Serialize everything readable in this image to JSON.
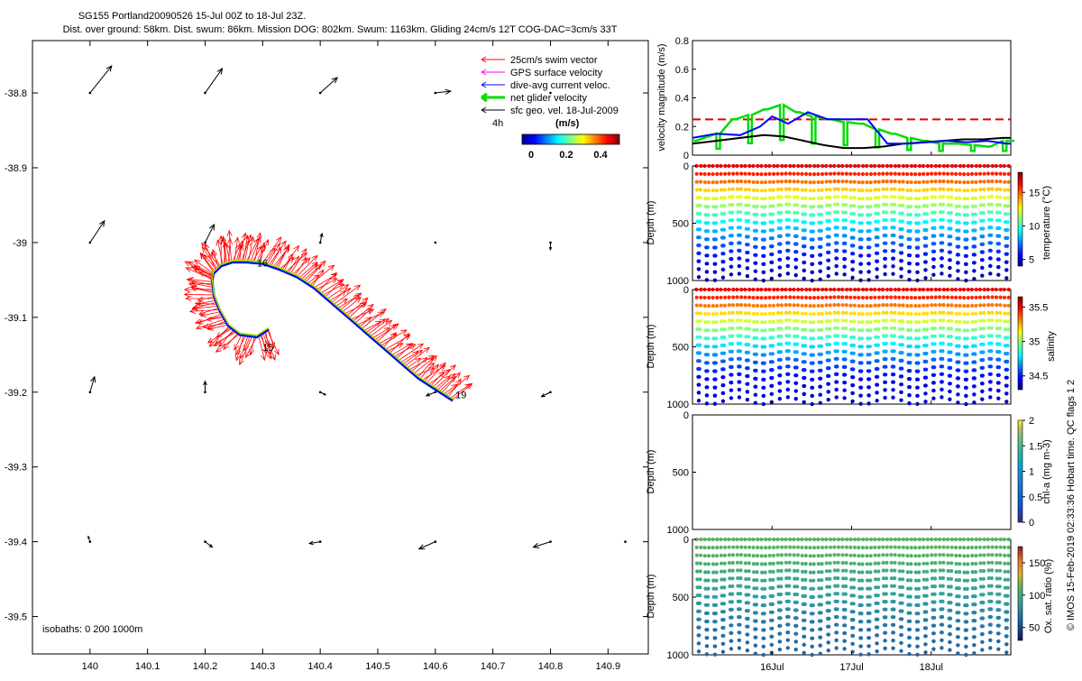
{
  "header": {
    "title": "SG155 Portland20090526 15-Jul 00Z to 18-Jul 23Z.",
    "subtitle": "Dist. over ground: 58km. Dist. swum: 86km. Mission DOG: 802km. Swum: 1163km. Gliding 24cm/s 12T COG-DAC=3cm/s 33T"
  },
  "side_credit": "© IMOS 15-Feb-2019 02:33:36 Hobart time. QC flags 1  2",
  "colors": {
    "swim": "#ff0000",
    "gps": "#ff00ff",
    "dac": "#0000ff",
    "net": "#00dd00",
    "geo": "#000000",
    "limit": "#e00000"
  },
  "chart_data": [
    {
      "id": "map",
      "type": "scatter",
      "xlim": [
        139.9,
        140.97
      ],
      "ylim": [
        -39.55,
        -38.73
      ],
      "xticks": [
        140,
        140.1,
        140.2,
        140.3,
        140.4,
        140.5,
        140.6,
        140.7,
        140.8,
        140.9
      ],
      "xtick_labels": [
        "140",
        "140.1",
        "140.2",
        "140.3",
        "140.4",
        "140.5",
        "140.6",
        "140.7",
        "140.8",
        "140.9"
      ],
      "yticks": [
        -38.8,
        -38.9,
        -39,
        -39.1,
        -39.2,
        -39.3,
        -39.4,
        -39.5
      ],
      "ytick_labels": [
        "-38.8",
        "-38.9",
        "-39",
        "-39.1",
        "-39.2",
        "-39.3",
        "-39.4",
        "-39.5"
      ],
      "legend_position": "top-right",
      "legend": [
        {
          "label": "25cm/s swim vector",
          "color": "#ff0000"
        },
        {
          "label": "GPS surface velocity",
          "color": "#ff00ff"
        },
        {
          "label": "dive-avg current veloc.",
          "color": "#0000ff"
        },
        {
          "label": "net glider velocity",
          "color": "#00dd00"
        },
        {
          "label": "sfc geo. vel. 18-Jul-2009",
          "color": "#000000"
        }
      ],
      "legend_time_label": "4h",
      "colorbar": {
        "label": "(m/s)",
        "range": [
          0,
          0.5
        ],
        "ticks": [
          0,
          0.2,
          0.4
        ],
        "tick_labels": [
          "0",
          "0.2",
          "0.4"
        ]
      },
      "isobaths_label": "isobaths: 0   200   1000m",
      "track": {
        "lon": [
          140.31,
          140.29,
          140.26,
          140.24,
          140.225,
          140.215,
          140.212,
          140.215,
          140.228,
          140.248,
          140.272,
          140.3,
          140.33,
          140.36,
          140.39,
          140.42,
          140.45,
          140.48,
          140.51,
          140.54,
          140.57,
          140.6,
          140.63
        ],
        "lat": [
          -39.115,
          -39.125,
          -39.122,
          -39.11,
          -39.09,
          -39.07,
          -39.05,
          -39.04,
          -39.03,
          -39.025,
          -39.025,
          -39.027,
          -39.035,
          -39.045,
          -39.06,
          -39.08,
          -39.1,
          -39.12,
          -39.14,
          -39.16,
          -39.18,
          -39.195,
          -39.21
        ]
      },
      "track_labels": [
        {
          "text": "16",
          "lon": 140.29,
          "lat": -39.032
        },
        {
          "text": "15",
          "lon": 140.3,
          "lat": -39.145
        },
        {
          "text": "19",
          "lon": 140.635,
          "lat": -39.208
        }
      ],
      "geo_vectors": [
        {
          "lon": 140.0,
          "lat": -38.8,
          "u": 0.24,
          "v": 0.3
        },
        {
          "lon": 140.2,
          "lat": -38.8,
          "u": 0.19,
          "v": 0.27
        },
        {
          "lon": 140.4,
          "lat": -38.8,
          "u": 0.19,
          "v": 0.17
        },
        {
          "lon": 140.6,
          "lat": -38.8,
          "u": 0.17,
          "v": 0.02
        },
        {
          "lon": 140.8,
          "lat": -38.8,
          "u": 0.0,
          "v": 0.0
        },
        {
          "lon": 140.0,
          "lat": -39.0,
          "u": 0.16,
          "v": 0.24
        },
        {
          "lon": 140.2,
          "lat": -39.0,
          "u": 0.1,
          "v": 0.2
        },
        {
          "lon": 140.4,
          "lat": -39.0,
          "u": 0.02,
          "v": 0.1
        },
        {
          "lon": 140.6,
          "lat": -39.0,
          "u": 0.01,
          "v": 0.0
        },
        {
          "lon": 140.8,
          "lat": -39.0,
          "u": 0.0,
          "v": -0.08
        },
        {
          "lon": 140.0,
          "lat": -39.2,
          "u": 0.05,
          "v": 0.17
        },
        {
          "lon": 140.2,
          "lat": -39.2,
          "u": 0.0,
          "v": 0.12
        },
        {
          "lon": 140.4,
          "lat": -39.2,
          "u": 0.06,
          "v": -0.03
        },
        {
          "lon": 140.6,
          "lat": -39.2,
          "u": -0.1,
          "v": -0.04
        },
        {
          "lon": 140.8,
          "lat": -39.2,
          "u": -0.1,
          "v": -0.05
        },
        {
          "lon": 140.0,
          "lat": -39.4,
          "u": -0.02,
          "v": 0.06
        },
        {
          "lon": 140.2,
          "lat": -39.4,
          "u": 0.08,
          "v": -0.06
        },
        {
          "lon": 140.4,
          "lat": -39.4,
          "u": -0.12,
          "v": -0.02
        },
        {
          "lon": 140.6,
          "lat": -39.4,
          "u": -0.18,
          "v": -0.08
        },
        {
          "lon": 140.8,
          "lat": -39.4,
          "u": -0.19,
          "v": -0.06
        },
        {
          "lon": 140.93,
          "lat": -39.4,
          "u": 0.0,
          "v": 0.0
        }
      ]
    },
    {
      "id": "velocity",
      "type": "line",
      "xlim": [
        15.0,
        19.0
      ],
      "ylim": [
        0,
        0.8
      ],
      "yticks": [
        0,
        0.2,
        0.4,
        0.6,
        0.8
      ],
      "ytick_labels": [
        "0",
        "0.2",
        "0.4",
        "0.6",
        "0.8"
      ],
      "ylabel": "velocity magnitude (m/s)",
      "reference_line": 0.25,
      "series": [
        {
          "id": "net",
          "color": "#00dd00",
          "x": [
            15.0,
            15.3,
            15.5,
            15.7,
            15.9,
            16.1,
            16.3,
            16.5,
            16.7,
            16.9,
            17.1,
            17.3,
            17.5,
            17.7,
            17.9,
            18.1,
            18.3,
            18.5,
            18.7,
            18.9,
            19.0
          ],
          "y": [
            0.1,
            0.15,
            0.25,
            0.28,
            0.32,
            0.35,
            0.3,
            0.27,
            0.25,
            0.23,
            0.22,
            0.18,
            0.15,
            0.12,
            0.1,
            0.08,
            0.08,
            0.07,
            0.06,
            0.1,
            0.1
          ]
        },
        {
          "id": "dac",
          "color": "#0000ff",
          "x": [
            15.0,
            15.3,
            15.6,
            15.85,
            16.0,
            16.2,
            16.45,
            16.7,
            16.95,
            17.2,
            17.45,
            17.7,
            17.95,
            18.2,
            18.45,
            18.7,
            18.95,
            19.0
          ],
          "y": [
            0.12,
            0.15,
            0.14,
            0.2,
            0.27,
            0.22,
            0.3,
            0.25,
            0.25,
            0.25,
            0.08,
            0.08,
            0.09,
            0.1,
            0.09,
            0.1,
            0.08,
            0.08
          ]
        },
        {
          "id": "geo",
          "color": "#000000",
          "x": [
            15.0,
            15.3,
            15.6,
            15.9,
            16.15,
            16.4,
            16.65,
            16.9,
            17.15,
            17.4,
            17.65,
            17.9,
            18.15,
            18.4,
            18.65,
            18.9,
            19.0
          ],
          "y": [
            0.08,
            0.1,
            0.12,
            0.14,
            0.13,
            0.1,
            0.07,
            0.05,
            0.05,
            0.06,
            0.08,
            0.09,
            0.1,
            0.11,
            0.11,
            0.12,
            0.12
          ]
        }
      ]
    },
    {
      "id": "temperature",
      "type": "scatter",
      "xlim": [
        15.0,
        19.0
      ],
      "ylim": [
        1000,
        0
      ],
      "yticks": [
        0,
        500,
        1000
      ],
      "ytick_labels": [
        "0",
        "500",
        "1000"
      ],
      "ylabel": "Depth (m)",
      "colorbar": {
        "label": "temperature (°C)",
        "range": [
          4,
          18
        ],
        "ticks": [
          5,
          10,
          15
        ],
        "tick_labels": [
          "5",
          "10",
          "15"
        ]
      },
      "profile_count": 39,
      "profile": {
        "depth": [
          0,
          100,
          200,
          300,
          400,
          500,
          600,
          700,
          800,
          900,
          1000
        ],
        "value": [
          16.5,
          15.5,
          13.5,
          12.0,
          10.5,
          9.0,
          7.8,
          6.8,
          5.8,
          5.0,
          4.5
        ]
      }
    },
    {
      "id": "salinity",
      "type": "scatter",
      "xlim": [
        15.0,
        19.0
      ],
      "ylim": [
        1000,
        0
      ],
      "yticks": [
        0,
        500,
        1000
      ],
      "ytick_labels": [
        "0",
        "500",
        "1000"
      ],
      "ylabel": "Depth (m)",
      "colorbar": {
        "label": "salinity",
        "range": [
          34.3,
          35.65
        ],
        "ticks": [
          34.5,
          35,
          35.5
        ],
        "tick_labels": [
          "34.5",
          "35",
          "35.5"
        ]
      },
      "profile_count": 39,
      "profile": {
        "depth": [
          0,
          100,
          200,
          300,
          400,
          500,
          600,
          700,
          800,
          900,
          1000
        ],
        "value": [
          35.5,
          35.4,
          35.2,
          35.05,
          34.9,
          34.75,
          34.62,
          34.52,
          34.45,
          34.42,
          34.4
        ]
      }
    },
    {
      "id": "chla",
      "type": "scatter",
      "xlim": [
        15.0,
        19.0
      ],
      "ylim": [
        1000,
        0
      ],
      "yticks": [
        0,
        500,
        1000
      ],
      "ytick_labels": [
        "0",
        "500",
        "1000"
      ],
      "ylabel": "Depth (m)",
      "colorbar": {
        "label": "chl-a (mg m-3)",
        "range": [
          0,
          2
        ],
        "ticks": [
          0,
          0.5,
          1,
          1.5,
          2
        ],
        "tick_labels": [
          "0",
          "0.5",
          "1",
          "1.5",
          "2"
        ]
      },
      "profile_count": 0
    },
    {
      "id": "oxygen",
      "type": "scatter",
      "xlim": [
        15.0,
        19.0
      ],
      "ylim": [
        1000,
        0
      ],
      "yticks": [
        0,
        500,
        1000
      ],
      "ytick_labels": [
        "0",
        "500",
        "1000"
      ],
      "ylabel": "Depth (m)",
      "xticks": [
        16,
        17,
        18
      ],
      "xtick_labels": [
        "16Jul",
        "17Jul",
        "18Jul"
      ],
      "colorbar": {
        "label": "Ox. sat. ratio (%)",
        "range": [
          30,
          175
        ],
        "ticks": [
          50,
          100,
          150
        ],
        "tick_labels": [
          "50",
          "100",
          "150"
        ]
      },
      "profile_count": 39,
      "profile": {
        "depth": [
          0,
          100,
          200,
          300,
          400,
          500,
          600,
          700,
          800,
          900,
          1000
        ],
        "value": [
          112,
          112,
          108,
          100,
          95,
          88,
          80,
          72,
          68,
          65,
          62
        ]
      }
    }
  ]
}
